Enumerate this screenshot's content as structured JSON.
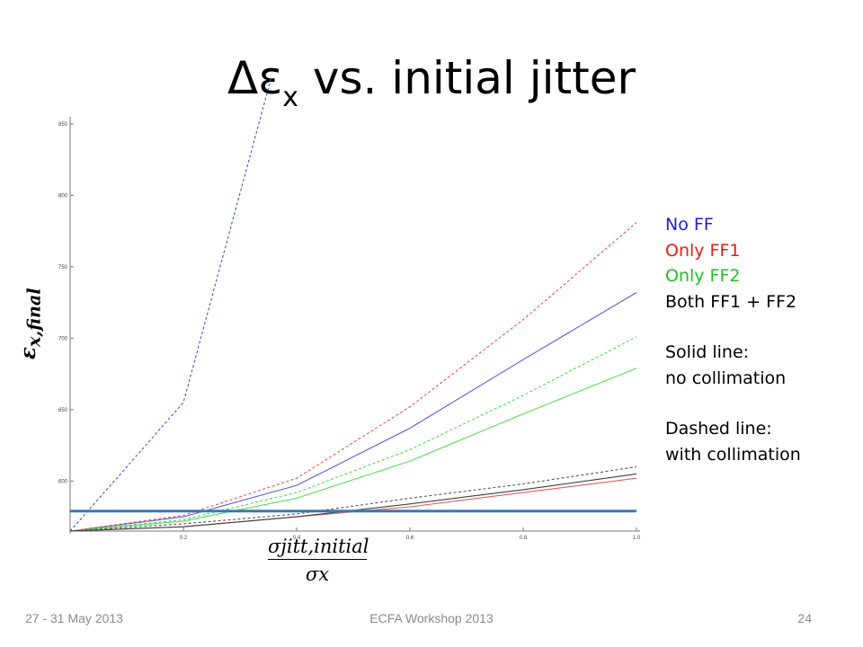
{
  "slide": {
    "title_main": "Δε",
    "title_sub": "x",
    "title_rest": " vs. initial jitter",
    "footer_left": "27 - 31 May 2013",
    "footer_center": "ECFA Workshop 2013",
    "footer_right": "24"
  },
  "legend": {
    "no_ff": "No FF",
    "only_ff1": "Only FF1",
    "only_ff2": "Only FF2",
    "both": "Both FF1 + FF2",
    "solid_title": "Solid line:",
    "solid_desc": "no collimation",
    "dashed_title": "Dashed line:",
    "dashed_desc": "with collimation",
    "colors": {
      "no_ff": "#1f1fd6",
      "only_ff1": "#e0201a",
      "only_ff2": "#22c022",
      "both": "#000000"
    }
  },
  "axes": {
    "ylabel": "ε",
    "ylabel_sub": "x,final",
    "xlabel_num": "σjitt,initial",
    "xlabel_den": "σx"
  },
  "chart_data": {
    "type": "line",
    "x_ticks": [
      "0.2",
      "0.4",
      "0.6",
      "0.8",
      "1.0"
    ],
    "x_tick_values": [
      0.2,
      0.4,
      0.6,
      0.8,
      1.0
    ],
    "y_ticks": [
      "600",
      "650",
      "700",
      "750",
      "800",
      "850"
    ],
    "y_tick_values": [
      600,
      650,
      700,
      750,
      800,
      850
    ],
    "xlim": [
      0,
      1.0
    ],
    "ylim": [
      565,
      865
    ],
    "grid": false,
    "series": [
      {
        "name": "No FF",
        "style": "dashed",
        "color": "#3a55d8",
        "x": [
          0,
          0.2,
          0.355
        ],
        "y": [
          565,
          655,
          882
        ]
      },
      {
        "name": "No FF",
        "style": "solid",
        "color": "#5a5ae0",
        "x": [
          0,
          0.2,
          0.4,
          0.6,
          0.8,
          1.0
        ],
        "y": [
          565,
          575,
          597,
          637,
          685,
          732
        ]
      },
      {
        "name": "Only FF1",
        "style": "dashed",
        "color": "#f05050",
        "x": [
          0,
          0.2,
          0.4,
          0.6,
          0.8,
          1.0
        ],
        "y": [
          565,
          576,
          602,
          652,
          713,
          781
        ]
      },
      {
        "name": "Only FF1",
        "style": "solid",
        "color": "#e85a5a",
        "x": [
          0,
          0.2,
          0.4,
          0.6,
          0.8,
          1.0
        ],
        "y": [
          565,
          568,
          575,
          582,
          592,
          602
        ]
      },
      {
        "name": "Only FF2",
        "style": "dashed",
        "color": "#44dd44",
        "x": [
          0,
          0.2,
          0.4,
          0.6,
          0.8,
          1.0
        ],
        "y": [
          565,
          573,
          592,
          622,
          660,
          701
        ]
      },
      {
        "name": "Only FF2",
        "style": "solid",
        "color": "#55dd55",
        "x": [
          0,
          0.2,
          0.4,
          0.6,
          0.8,
          1.0
        ],
        "y": [
          565,
          572,
          588,
          614,
          647,
          679
        ]
      },
      {
        "name": "Both FF1 + FF2",
        "style": "dashed",
        "color": "#555555",
        "x": [
          0,
          0.2,
          0.4,
          0.6,
          0.8,
          1.0
        ],
        "y": [
          565,
          570,
          577,
          588,
          598,
          610
        ]
      },
      {
        "name": "Both FF1 + FF2",
        "style": "solid",
        "color": "#404040",
        "x": [
          0,
          0.2,
          0.4,
          0.6,
          0.8,
          1.0
        ],
        "y": [
          565,
          568,
          575,
          584,
          594,
          605
        ]
      }
    ],
    "reference_line": {
      "color": "#3a78b4",
      "y": 579
    }
  }
}
